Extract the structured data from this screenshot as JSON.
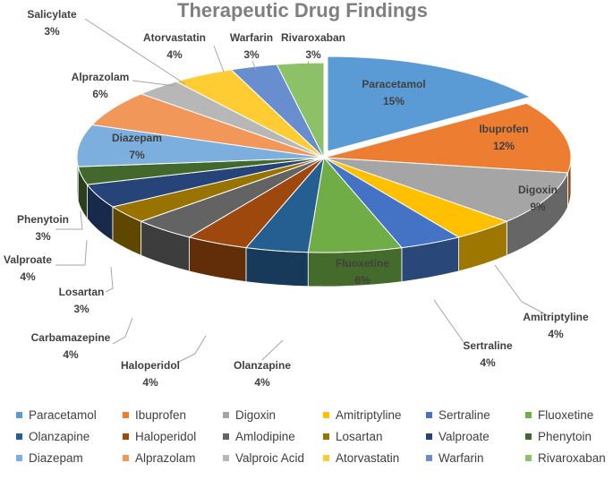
{
  "chart_data": {
    "type": "pie",
    "style": "3d-exploded-first-slice",
    "title": "Therapeutic Drug Findings",
    "legend_position": "bottom",
    "slices": [
      {
        "name": "Paracetamol",
        "value": 15,
        "label": "15%",
        "color": "#5b9bd5"
      },
      {
        "name": "Ibuprofen",
        "value": 12,
        "label": "12%",
        "color": "#ed7d31"
      },
      {
        "name": "Digoxin",
        "value": 9,
        "label": "9%",
        "color": "#a5a5a5"
      },
      {
        "name": "Amitriptyline",
        "value": 4,
        "label": "4%",
        "color": "#ffc000"
      },
      {
        "name": "Sertraline",
        "value": 4,
        "label": "4%",
        "color": "#4472c4"
      },
      {
        "name": "Fluoxetine",
        "value": 6,
        "label": "6%",
        "color": "#70ad47"
      },
      {
        "name": "Olanzapine",
        "value": 4,
        "label": "4%",
        "color": "#255e91"
      },
      {
        "name": "Haloperidol",
        "value": 4,
        "label": "4%",
        "color": "#9e480e"
      },
      {
        "name": "Amlodipine",
        "value": 4,
        "label": "",
        "color": "#636363"
      },
      {
        "name": "Losartan",
        "value": 3,
        "label": "3%",
        "color": "#997300"
      },
      {
        "name": "Valproate",
        "value": 4,
        "label": "4%",
        "color": "#264478"
      },
      {
        "name": "Phenytoin",
        "value": 3,
        "label": "3%",
        "color": "#43682b"
      },
      {
        "name": "Diazepam",
        "value": 7,
        "label": "7%",
        "color": "#7cafdd"
      },
      {
        "name": "Alprazolam",
        "value": 6,
        "label": "6%",
        "color": "#f1975a"
      },
      {
        "name": "Valproic Acid",
        "value": 3,
        "label": "",
        "color": "#b7b7b7"
      },
      {
        "name": "Atorvastatin",
        "value": 4,
        "label": "4%",
        "color": "#ffcd33"
      },
      {
        "name": "Warfarin",
        "value": 3,
        "label": "3%",
        "color": "#698ed0"
      },
      {
        "name": "Rivaroxaban",
        "value": 3,
        "label": "3%",
        "color": "#8cc168"
      }
    ]
  }
}
